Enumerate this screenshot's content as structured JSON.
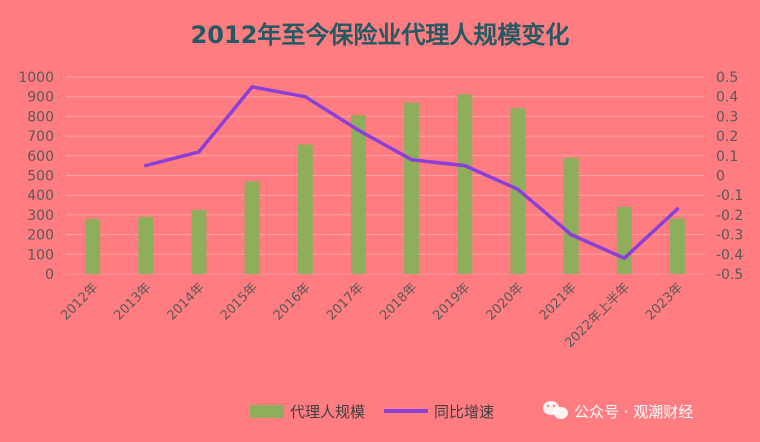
{
  "chart_data": {
    "type": "bar+line",
    "title": "2012年至今保险业代理人规模变化",
    "categories": [
      "2012年",
      "2013年",
      "2014年",
      "2015年",
      "2016年",
      "2017年",
      "2018年",
      "2019年",
      "2020年",
      "2021年",
      "2022年上半年",
      "2023年"
    ],
    "series": [
      {
        "name": "代理人规模",
        "type": "bar",
        "axis": "left",
        "color": "#8fae5b",
        "values": [
          280,
          290,
          325,
          470,
          657,
          806,
          871,
          912,
          842,
          590,
          340,
          281
        ]
      },
      {
        "name": "同比增速",
        "type": "line",
        "axis": "right",
        "color": "#8b3fd9",
        "values": [
          null,
          0.05,
          0.12,
          0.45,
          0.4,
          0.23,
          0.08,
          0.05,
          -0.07,
          -0.3,
          -0.42,
          -0.17
        ]
      }
    ],
    "y_left": {
      "min": 0,
      "max": 1000,
      "step": 100,
      "ticks": [
        "0",
        "100",
        "200",
        "300",
        "400",
        "500",
        "600",
        "700",
        "800",
        "900",
        "1000"
      ]
    },
    "y_right": {
      "min": -0.5,
      "max": 0.5,
      "step": 0.1,
      "ticks": [
        "-0.5",
        "-0.4",
        "-0.3",
        "-0.2",
        "-0.1",
        "0",
        "0.1",
        "0.2",
        "0.3",
        "0.4",
        "0.5"
      ]
    },
    "grid": true,
    "legend_position": "bottom"
  },
  "watermark": {
    "text": "公众号 · 观潮财经",
    "icon": "wechat-icon"
  },
  "colors": {
    "background": "#ff7c80",
    "grid": "#f7a4a6",
    "tick_text": "#595959",
    "title": "#215a63"
  }
}
